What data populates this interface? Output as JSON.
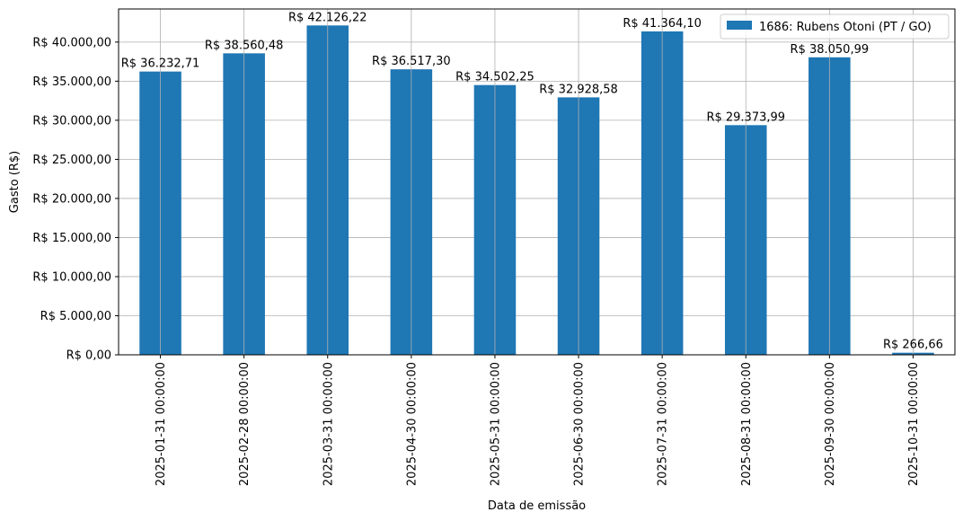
{
  "chart_data": {
    "type": "bar",
    "xlabel": "Data de emissão",
    "ylabel": "Gasto (R$)",
    "categories": [
      "2025-01-31 00:00:00",
      "2025-02-28 00:00:00",
      "2025-03-31 00:00:00",
      "2025-04-30 00:00:00",
      "2025-05-31 00:00:00",
      "2025-06-30 00:00:00",
      "2025-07-31 00:00:00",
      "2025-08-31 00:00:00",
      "2025-09-30 00:00:00",
      "2025-10-31 00:00:00"
    ],
    "series": [
      {
        "name": "1686: Rubens Otoni (PT / GO)",
        "color": "#1f77b4",
        "values": [
          36232.71,
          38560.48,
          42126.22,
          36517.3,
          34502.25,
          32928.58,
          41364.1,
          29373.99,
          38050.99,
          266.66
        ],
        "data_labels": [
          "R$ 36.232,71",
          "R$ 38.560,48",
          "R$ 42.126,22",
          "R$ 36.517,30",
          "R$ 34.502,25",
          "R$ 32.928,58",
          "R$ 41.364,10",
          "R$ 29.373,99",
          "R$ 38.050,99",
          "R$ 266,66"
        ]
      }
    ],
    "ylim": [
      0,
      44232.53
    ],
    "yticks": [
      0,
      5000,
      10000,
      15000,
      20000,
      25000,
      30000,
      35000,
      40000
    ],
    "ytick_labels": [
      "R$ 0,00",
      "R$ 5.000,00",
      "R$ 10.000,00",
      "R$ 15.000,00",
      "R$ 20.000,00",
      "R$ 25.000,00",
      "R$ 30.000,00",
      "R$ 35.000,00",
      "R$ 40.000,00"
    ],
    "grid": true,
    "legend_position": "top-right"
  }
}
